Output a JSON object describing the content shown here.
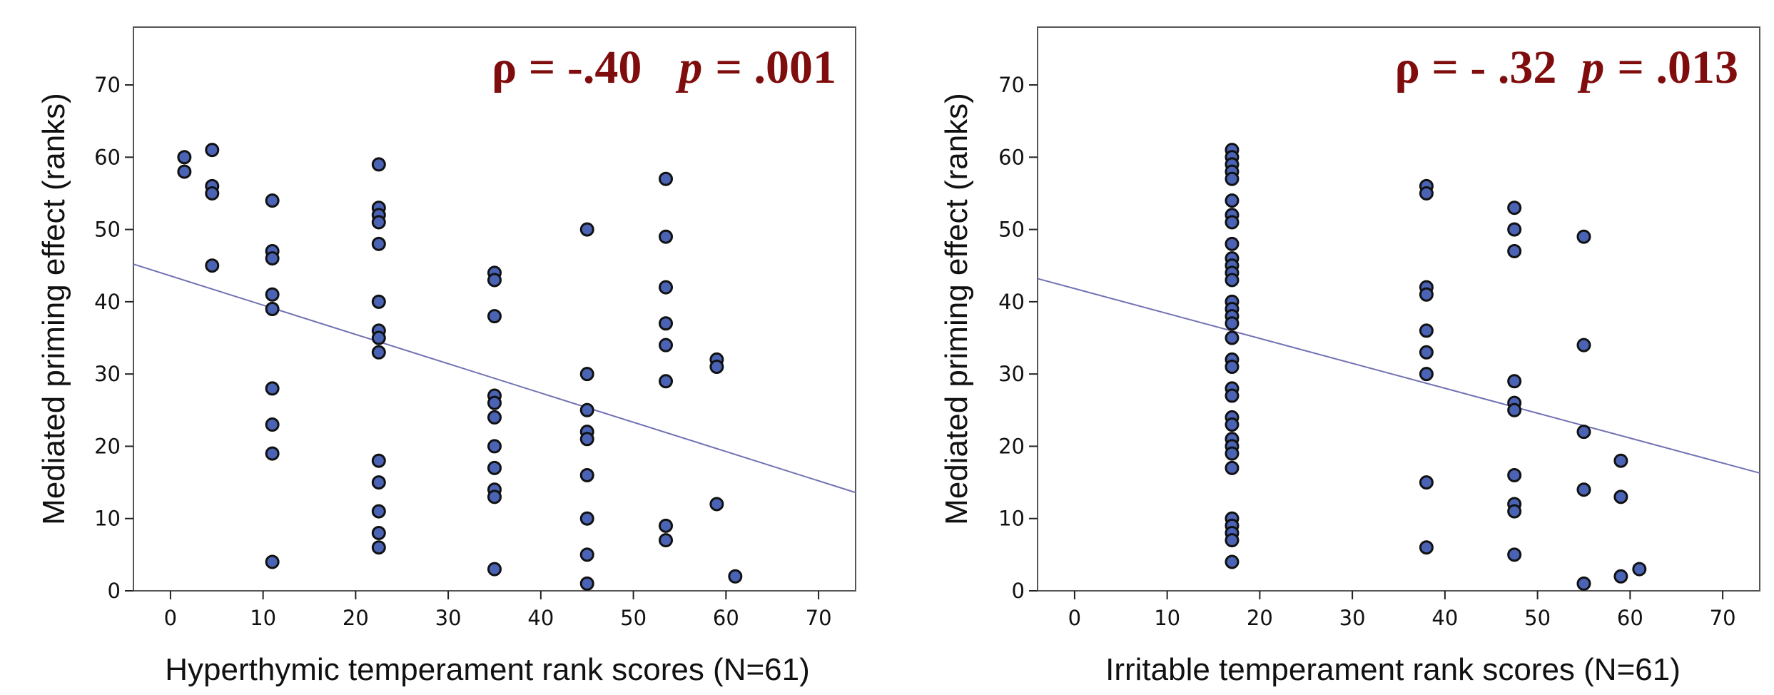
{
  "colors": {
    "point_fill": "#4a63b5",
    "point_stroke": "#111111",
    "fit_line": "#7272b4",
    "annotation": "#7f0d0d",
    "frame": "#555555"
  },
  "chart_data": [
    {
      "type": "scatter",
      "xlabel": "Hyperthymic temperament rank scores (N=61)",
      "ylabel": "Mediated priming effect  (ranks)",
      "xlim": [
        -4,
        74
      ],
      "ylim": [
        0,
        78
      ],
      "xticks": [
        0,
        10,
        20,
        30,
        40,
        50,
        60,
        70
      ],
      "yticks": [
        0,
        10,
        20,
        30,
        40,
        50,
        60,
        70
      ],
      "annotation": {
        "rho_label": "ρ = -.40",
        "p_symbol": "p",
        "p_value": "= .001"
      },
      "fit_line": {
        "x": [
          -4,
          74
        ],
        "y": [
          45.2,
          13.6
        ]
      },
      "grid": false,
      "points": [
        {
          "x": 1.5,
          "y": 60
        },
        {
          "x": 1.5,
          "y": 58
        },
        {
          "x": 4.5,
          "y": 61
        },
        {
          "x": 4.5,
          "y": 56
        },
        {
          "x": 4.5,
          "y": 55
        },
        {
          "x": 4.5,
          "y": 45
        },
        {
          "x": 11,
          "y": 54
        },
        {
          "x": 11,
          "y": 47
        },
        {
          "x": 11,
          "y": 46
        },
        {
          "x": 11,
          "y": 41
        },
        {
          "x": 11,
          "y": 39
        },
        {
          "x": 11,
          "y": 28
        },
        {
          "x": 11,
          "y": 23
        },
        {
          "x": 11,
          "y": 19
        },
        {
          "x": 11,
          "y": 4
        },
        {
          "x": 22.5,
          "y": 59
        },
        {
          "x": 22.5,
          "y": 53
        },
        {
          "x": 22.5,
          "y": 52
        },
        {
          "x": 22.5,
          "y": 51
        },
        {
          "x": 22.5,
          "y": 48
        },
        {
          "x": 22.5,
          "y": 40
        },
        {
          "x": 22.5,
          "y": 36
        },
        {
          "x": 22.5,
          "y": 35
        },
        {
          "x": 22.5,
          "y": 33
        },
        {
          "x": 22.5,
          "y": 18
        },
        {
          "x": 22.5,
          "y": 15
        },
        {
          "x": 22.5,
          "y": 11
        },
        {
          "x": 22.5,
          "y": 8
        },
        {
          "x": 22.5,
          "y": 6
        },
        {
          "x": 35,
          "y": 44
        },
        {
          "x": 35,
          "y": 43
        },
        {
          "x": 35,
          "y": 38
        },
        {
          "x": 35,
          "y": 27
        },
        {
          "x": 35,
          "y": 26
        },
        {
          "x": 35,
          "y": 24
        },
        {
          "x": 35,
          "y": 20
        },
        {
          "x": 35,
          "y": 17
        },
        {
          "x": 35,
          "y": 14
        },
        {
          "x": 35,
          "y": 13
        },
        {
          "x": 35,
          "y": 3
        },
        {
          "x": 45,
          "y": 50
        },
        {
          "x": 45,
          "y": 30
        },
        {
          "x": 45,
          "y": 25
        },
        {
          "x": 45,
          "y": 22
        },
        {
          "x": 45,
          "y": 21
        },
        {
          "x": 45,
          "y": 16
        },
        {
          "x": 45,
          "y": 10
        },
        {
          "x": 45,
          "y": 5
        },
        {
          "x": 45,
          "y": 1
        },
        {
          "x": 53.5,
          "y": 57
        },
        {
          "x": 53.5,
          "y": 49
        },
        {
          "x": 53.5,
          "y": 42
        },
        {
          "x": 53.5,
          "y": 37
        },
        {
          "x": 53.5,
          "y": 34
        },
        {
          "x": 53.5,
          "y": 29
        },
        {
          "x": 53.5,
          "y": 9
        },
        {
          "x": 53.5,
          "y": 7
        },
        {
          "x": 59,
          "y": 32
        },
        {
          "x": 59,
          "y": 31
        },
        {
          "x": 59,
          "y": 12
        },
        {
          "x": 61,
          "y": 2
        }
      ]
    },
    {
      "type": "scatter",
      "xlabel": "Irritable temperament rank scores (N=61)",
      "ylabel": "Mediated priming effect  (ranks)",
      "xlim": [
        -4,
        74
      ],
      "ylim": [
        0,
        78
      ],
      "xticks": [
        0,
        10,
        20,
        30,
        40,
        50,
        60,
        70
      ],
      "yticks": [
        0,
        10,
        20,
        30,
        40,
        50,
        60,
        70
      ],
      "annotation": {
        "rho_label": "ρ = - .32",
        "p_symbol": "p",
        "p_value": "= .013"
      },
      "fit_line": {
        "x": [
          -4,
          74
        ],
        "y": [
          43.2,
          16.3
        ]
      },
      "grid": false,
      "points": [
        {
          "x": 17,
          "y": 61
        },
        {
          "x": 17,
          "y": 60
        },
        {
          "x": 17,
          "y": 59
        },
        {
          "x": 17,
          "y": 58
        },
        {
          "x": 17,
          "y": 57
        },
        {
          "x": 17,
          "y": 54
        },
        {
          "x": 17,
          "y": 52
        },
        {
          "x": 17,
          "y": 51
        },
        {
          "x": 17,
          "y": 48
        },
        {
          "x": 17,
          "y": 46
        },
        {
          "x": 17,
          "y": 45
        },
        {
          "x": 17,
          "y": 44
        },
        {
          "x": 17,
          "y": 43
        },
        {
          "x": 17,
          "y": 40
        },
        {
          "x": 17,
          "y": 39
        },
        {
          "x": 17,
          "y": 38
        },
        {
          "x": 17,
          "y": 37
        },
        {
          "x": 17,
          "y": 35
        },
        {
          "x": 17,
          "y": 32
        },
        {
          "x": 17,
          "y": 31
        },
        {
          "x": 17,
          "y": 28
        },
        {
          "x": 17,
          "y": 27
        },
        {
          "x": 17,
          "y": 24
        },
        {
          "x": 17,
          "y": 23
        },
        {
          "x": 17,
          "y": 21
        },
        {
          "x": 17,
          "y": 20
        },
        {
          "x": 17,
          "y": 19
        },
        {
          "x": 17,
          "y": 17
        },
        {
          "x": 17,
          "y": 10
        },
        {
          "x": 17,
          "y": 9
        },
        {
          "x": 17,
          "y": 8
        },
        {
          "x": 17,
          "y": 7
        },
        {
          "x": 17,
          "y": 4
        },
        {
          "x": 38,
          "y": 56
        },
        {
          "x": 38,
          "y": 55
        },
        {
          "x": 38,
          "y": 42
        },
        {
          "x": 38,
          "y": 41
        },
        {
          "x": 38,
          "y": 36
        },
        {
          "x": 38,
          "y": 33
        },
        {
          "x": 38,
          "y": 30
        },
        {
          "x": 38,
          "y": 15
        },
        {
          "x": 38,
          "y": 6
        },
        {
          "x": 47.5,
          "y": 53
        },
        {
          "x": 47.5,
          "y": 50
        },
        {
          "x": 47.5,
          "y": 47
        },
        {
          "x": 47.5,
          "y": 29
        },
        {
          "x": 47.5,
          "y": 26
        },
        {
          "x": 47.5,
          "y": 25
        },
        {
          "x": 47.5,
          "y": 16
        },
        {
          "x": 47.5,
          "y": 12
        },
        {
          "x": 47.5,
          "y": 11
        },
        {
          "x": 47.5,
          "y": 5
        },
        {
          "x": 55,
          "y": 49
        },
        {
          "x": 55,
          "y": 34
        },
        {
          "x": 55,
          "y": 22
        },
        {
          "x": 55,
          "y": 14
        },
        {
          "x": 55,
          "y": 1
        },
        {
          "x": 59,
          "y": 18
        },
        {
          "x": 59,
          "y": 13
        },
        {
          "x": 59,
          "y": 2
        },
        {
          "x": 61,
          "y": 3
        }
      ]
    }
  ]
}
